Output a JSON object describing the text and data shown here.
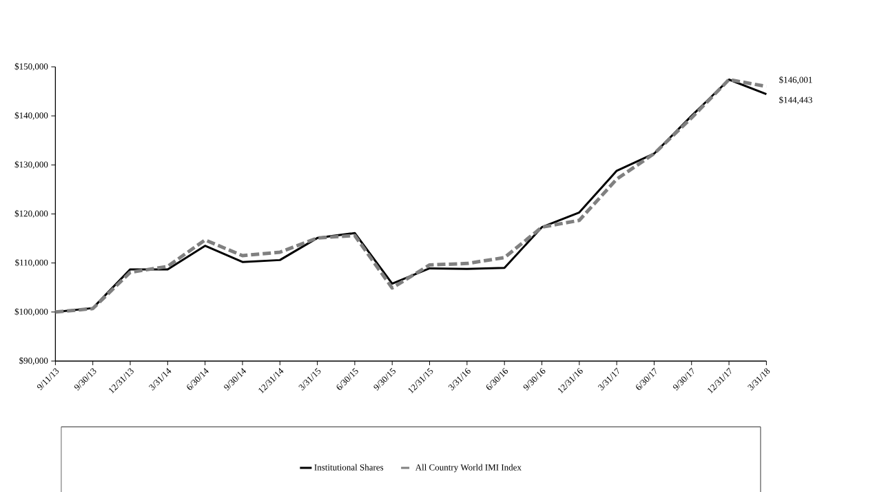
{
  "chart_data": {
    "type": "line",
    "categories": [
      "9/11/13",
      "9/30/13",
      "12/31/13",
      "3/31/14",
      "6/30/14",
      "9/30/14",
      "12/31/14",
      "3/31/15",
      "6/30/15",
      "9/30/15",
      "12/31/15",
      "3/31/16",
      "6/30/16",
      "9/30/16",
      "12/31/16",
      "3/31/17",
      "6/30/17",
      "9/30/17",
      "12/31/17",
      "3/31/18"
    ],
    "series": [
      {
        "name": "Institutional Shares",
        "color": "#000000",
        "line_style": "solid",
        "values": [
          100000,
          100800,
          108700,
          108700,
          113500,
          110200,
          110600,
          115100,
          116100,
          105800,
          108900,
          108800,
          109000,
          117300,
          120300,
          128800,
          132300,
          140000,
          147400,
          144443
        ]
      },
      {
        "name": "All Country World IMI Index",
        "color": "#808080",
        "line_style": "dashed",
        "values": [
          100000,
          100700,
          108100,
          109300,
          114700,
          111500,
          112200,
          115100,
          115600,
          104900,
          109600,
          109900,
          111100,
          117300,
          118700,
          127100,
          132300,
          139600,
          147400,
          146001
        ]
      }
    ],
    "ylim": [
      90000,
      150000
    ],
    "yticks": [
      {
        "value": 90000,
        "label": "$90,000"
      },
      {
        "value": 100000,
        "label": "$100,000"
      },
      {
        "value": 110000,
        "label": "$110,000"
      },
      {
        "value": 120000,
        "label": "$120,000"
      },
      {
        "value": 130000,
        "label": "$130,000"
      },
      {
        "value": 140000,
        "label": "$140,000"
      },
      {
        "value": 150000,
        "label": "$150,000"
      }
    ],
    "annotations": [
      {
        "text": "$146,001",
        "x": "3/31/18",
        "y": 146001
      },
      {
        "text": "$144,443",
        "x": "3/31/18",
        "y": 144443
      }
    ],
    "legend": "bottom",
    "grid": false,
    "marker": "none"
  }
}
